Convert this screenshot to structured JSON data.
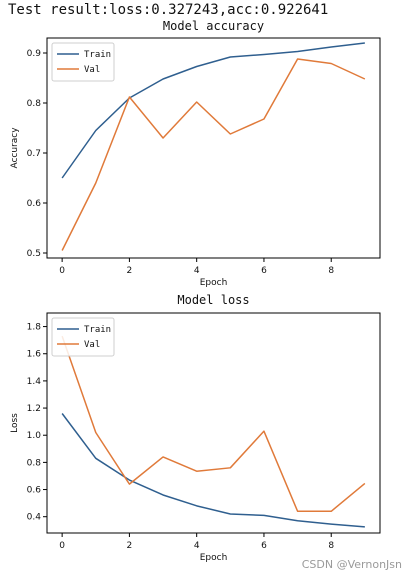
{
  "header": {
    "text": "Test result:loss:0.327243,acc:0.922641"
  },
  "watermark": "CSDN @VernonJsn",
  "colors": {
    "train": "#2f5f8f",
    "val": "#e07a3a",
    "axis": "#000000",
    "text": "#111111",
    "legend_border": "#cfcfcf"
  },
  "chart_data": [
    {
      "type": "line",
      "title": "Model accuracy",
      "xlabel": "Epoch",
      "ylabel": "Accuracy",
      "x": [
        0,
        1,
        2,
        3,
        4,
        5,
        6,
        7,
        8,
        9
      ],
      "xlim": [
        -0.45,
        9.45
      ],
      "ylim": [
        0.49,
        0.93
      ],
      "xticks": [
        0,
        2,
        4,
        6,
        8
      ],
      "yticks": [
        0.5,
        0.6,
        0.7,
        0.8,
        0.9
      ],
      "ytick_labels": [
        "0.5",
        "0.6",
        "0.7",
        "0.8",
        "0.9"
      ],
      "grid": false,
      "legend": {
        "placement": "upper-left",
        "entries": [
          "Train",
          "Val"
        ]
      },
      "series": [
        {
          "name": "Train",
          "values": [
            0.65,
            0.745,
            0.81,
            0.848,
            0.873,
            0.892,
            0.897,
            0.903,
            0.912,
            0.92
          ]
        },
        {
          "name": "Val",
          "values": [
            0.505,
            0.64,
            0.812,
            0.73,
            0.802,
            0.738,
            0.768,
            0.888,
            0.879,
            0.848
          ]
        }
      ]
    },
    {
      "type": "line",
      "title": "Model loss",
      "xlabel": "Epoch",
      "ylabel": "Loss",
      "x": [
        0,
        1,
        2,
        3,
        4,
        5,
        6,
        7,
        8,
        9
      ],
      "xlim": [
        -0.45,
        9.45
      ],
      "ylim": [
        0.28,
        1.9
      ],
      "xticks": [
        0,
        2,
        4,
        6,
        8
      ],
      "yticks": [
        0.4,
        0.6,
        0.8,
        1.0,
        1.2,
        1.4,
        1.6,
        1.8
      ],
      "ytick_labels": [
        "0.4",
        "0.6",
        "0.8",
        "1.0",
        "1.2",
        "1.4",
        "1.6",
        "1.8"
      ],
      "grid": false,
      "legend": {
        "placement": "upper-left",
        "entries": [
          "Train",
          "Val"
        ]
      },
      "series": [
        {
          "name": "Train",
          "values": [
            1.16,
            0.83,
            0.67,
            0.56,
            0.48,
            0.42,
            0.41,
            0.37,
            0.345,
            0.325
          ]
        },
        {
          "name": "Val",
          "values": [
            1.73,
            1.02,
            0.64,
            0.84,
            0.735,
            0.76,
            1.03,
            0.44,
            0.44,
            0.645
          ]
        }
      ]
    }
  ]
}
